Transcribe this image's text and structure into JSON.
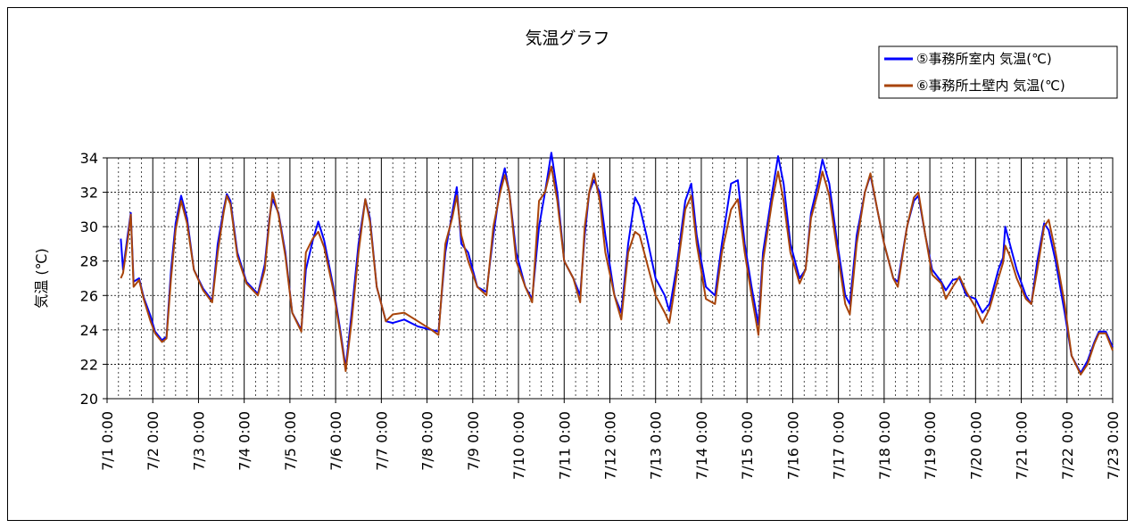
{
  "chart_data": {
    "type": "line",
    "title": "気温グラフ",
    "ylabel": "気温 (℃)",
    "xlabel": "",
    "ylim": [
      20,
      34
    ],
    "yticks": [
      20,
      22,
      24,
      26,
      28,
      30,
      32,
      34
    ],
    "xlim": [
      0,
      22
    ],
    "xtick_labels": [
      "7/1 0:00",
      "7/2 0:00",
      "7/3 0:00",
      "7/4 0:00",
      "7/5 0:00",
      "7/6 0:00",
      "7/7 0:00",
      "7/8 0:00",
      "7/9 0:00",
      "7/10 0:00",
      "7/11 0:00",
      "7/12 0:00",
      "7/13 0:00",
      "7/14 0:00",
      "7/15 0:00",
      "7/16 0:00",
      "7/17 0:00",
      "7/18 0:00",
      "7/19 0:00",
      "7/20 0:00",
      "7/21 0:00",
      "7/22 0:00",
      "7/23 0:00"
    ],
    "grid": true,
    "legend_position": "top-right",
    "series": [
      {
        "name": "⑤事務所室内 気温(℃)",
        "color": "#0000ff",
        "points": [
          [
            0.3,
            29.3
          ],
          [
            0.35,
            27.5
          ],
          [
            0.45,
            29.5
          ],
          [
            0.52,
            30.8
          ],
          [
            0.58,
            26.8
          ],
          [
            0.7,
            27.0
          ],
          [
            0.8,
            25.9
          ],
          [
            0.95,
            24.8
          ],
          [
            1.05,
            23.9
          ],
          [
            1.2,
            23.4
          ],
          [
            1.3,
            23.6
          ],
          [
            1.4,
            27.5
          ],
          [
            1.5,
            30.2
          ],
          [
            1.62,
            31.8
          ],
          [
            1.75,
            30.5
          ],
          [
            1.9,
            27.5
          ],
          [
            2.1,
            26.4
          ],
          [
            2.3,
            25.7
          ],
          [
            2.42,
            29.0
          ],
          [
            2.55,
            31.0
          ],
          [
            2.62,
            31.9
          ],
          [
            2.7,
            31.5
          ],
          [
            2.85,
            28.5
          ],
          [
            3.05,
            26.8
          ],
          [
            3.3,
            26.1
          ],
          [
            3.45,
            27.8
          ],
          [
            3.55,
            30.5
          ],
          [
            3.62,
            31.6
          ],
          [
            3.75,
            30.8
          ],
          [
            3.9,
            28.5
          ],
          [
            4.05,
            25.0
          ],
          [
            4.25,
            24.0
          ],
          [
            4.35,
            27.5
          ],
          [
            4.5,
            29.2
          ],
          [
            4.62,
            30.3
          ],
          [
            4.75,
            29.2
          ],
          [
            4.95,
            26.5
          ],
          [
            5.1,
            24.0
          ],
          [
            5.22,
            21.8
          ],
          [
            5.35,
            25.0
          ],
          [
            5.5,
            29.0
          ],
          [
            5.65,
            31.6
          ],
          [
            5.75,
            30.5
          ],
          [
            5.9,
            26.5
          ],
          [
            6.1,
            24.5
          ],
          [
            6.25,
            24.4
          ],
          [
            6.5,
            24.6
          ],
          [
            6.8,
            24.2
          ],
          [
            7.1,
            24.0
          ],
          [
            7.25,
            23.9
          ],
          [
            7.4,
            28.5
          ],
          [
            7.55,
            30.8
          ],
          [
            7.65,
            32.3
          ],
          [
            7.75,
            29.0
          ],
          [
            7.9,
            28.5
          ],
          [
            8.1,
            26.5
          ],
          [
            8.3,
            26.2
          ],
          [
            8.45,
            29.5
          ],
          [
            8.6,
            32.3
          ],
          [
            8.7,
            33.4
          ],
          [
            8.8,
            32.0
          ],
          [
            8.95,
            28.5
          ],
          [
            9.15,
            26.5
          ],
          [
            9.3,
            25.8
          ],
          [
            9.45,
            30.0
          ],
          [
            9.58,
            32.0
          ],
          [
            9.72,
            34.3
          ],
          [
            9.85,
            32.0
          ],
          [
            10.0,
            28.0
          ],
          [
            10.2,
            27.0
          ],
          [
            10.35,
            26.0
          ],
          [
            10.45,
            29.5
          ],
          [
            10.55,
            32.0
          ],
          [
            10.65,
            32.7
          ],
          [
            10.78,
            32.0
          ],
          [
            10.9,
            29.5
          ],
          [
            11.1,
            26.0
          ],
          [
            11.25,
            25.0
          ],
          [
            11.4,
            29.0
          ],
          [
            11.55,
            31.7
          ],
          [
            11.65,
            31.2
          ],
          [
            11.8,
            29.5
          ],
          [
            12.0,
            27.0
          ],
          [
            12.2,
            26.0
          ],
          [
            12.3,
            25.1
          ],
          [
            12.45,
            27.5
          ],
          [
            12.65,
            31.5
          ],
          [
            12.78,
            32.5
          ],
          [
            12.9,
            29.5
          ],
          [
            13.1,
            26.5
          ],
          [
            13.3,
            26.0
          ],
          [
            13.45,
            29.0
          ],
          [
            13.65,
            32.5
          ],
          [
            13.8,
            32.7
          ],
          [
            13.95,
            29.0
          ],
          [
            14.1,
            26.5
          ],
          [
            14.25,
            24.3
          ],
          [
            14.35,
            28.5
          ],
          [
            14.55,
            32.0
          ],
          [
            14.68,
            34.1
          ],
          [
            14.8,
            32.5
          ],
          [
            14.95,
            29.0
          ],
          [
            15.15,
            27.0
          ],
          [
            15.28,
            27.5
          ],
          [
            15.4,
            30.8
          ],
          [
            15.55,
            32.5
          ],
          [
            15.65,
            33.9
          ],
          [
            15.8,
            32.5
          ],
          [
            15.95,
            29.5
          ],
          [
            16.15,
            26.0
          ],
          [
            16.25,
            25.5
          ],
          [
            16.4,
            29.5
          ],
          [
            16.58,
            32.0
          ],
          [
            16.7,
            33.0
          ],
          [
            16.85,
            31.0
          ],
          [
            17.0,
            29.0
          ],
          [
            17.2,
            27.0
          ],
          [
            17.3,
            26.8
          ],
          [
            17.5,
            30.0
          ],
          [
            17.65,
            31.5
          ],
          [
            17.75,
            31.8
          ],
          [
            17.9,
            29.5
          ],
          [
            18.05,
            27.5
          ],
          [
            18.25,
            26.8
          ],
          [
            18.35,
            26.3
          ],
          [
            18.5,
            26.9
          ],
          [
            18.65,
            27.0
          ],
          [
            18.8,
            26.0
          ],
          [
            19.0,
            25.8
          ],
          [
            19.15,
            25.0
          ],
          [
            19.3,
            25.5
          ],
          [
            19.5,
            27.5
          ],
          [
            19.6,
            28.2
          ],
          [
            19.65,
            30.0
          ],
          [
            19.75,
            29.0
          ],
          [
            19.9,
            27.5
          ],
          [
            20.1,
            26.0
          ],
          [
            20.22,
            25.5
          ],
          [
            20.35,
            28.0
          ],
          [
            20.5,
            30.2
          ],
          [
            20.6,
            29.8
          ],
          [
            20.75,
            28.0
          ],
          [
            20.95,
            25.0
          ],
          [
            21.1,
            22.5
          ],
          [
            21.3,
            21.5
          ],
          [
            21.45,
            22.2
          ],
          [
            21.6,
            23.3
          ],
          [
            21.7,
            23.9
          ],
          [
            21.85,
            23.9
          ],
          [
            22.0,
            23.0
          ]
        ]
      },
      {
        "name": "⑥事務所土壁内 気温(℃)",
        "color": "#a8440a",
        "points": [
          [
            0.3,
            27.0
          ],
          [
            0.35,
            27.3
          ],
          [
            0.45,
            29.2
          ],
          [
            0.52,
            30.7
          ],
          [
            0.58,
            26.5
          ],
          [
            0.7,
            26.9
          ],
          [
            0.8,
            25.8
          ],
          [
            0.95,
            24.5
          ],
          [
            1.05,
            23.8
          ],
          [
            1.2,
            23.3
          ],
          [
            1.3,
            23.5
          ],
          [
            1.4,
            27.0
          ],
          [
            1.5,
            29.8
          ],
          [
            1.62,
            31.5
          ],
          [
            1.75,
            30.2
          ],
          [
            1.9,
            27.5
          ],
          [
            2.1,
            26.3
          ],
          [
            2.3,
            25.6
          ],
          [
            2.42,
            28.5
          ],
          [
            2.55,
            30.8
          ],
          [
            2.62,
            31.8
          ],
          [
            2.7,
            31.3
          ],
          [
            2.85,
            28.3
          ],
          [
            3.05,
            26.7
          ],
          [
            3.3,
            26.0
          ],
          [
            3.45,
            27.5
          ],
          [
            3.55,
            30.3
          ],
          [
            3.62,
            32.0
          ],
          [
            3.75,
            30.7
          ],
          [
            3.9,
            28.3
          ],
          [
            4.05,
            25.0
          ],
          [
            4.25,
            23.9
          ],
          [
            4.35,
            28.5
          ],
          [
            4.5,
            29.3
          ],
          [
            4.62,
            29.7
          ],
          [
            4.75,
            28.8
          ],
          [
            4.95,
            26.3
          ],
          [
            5.1,
            23.8
          ],
          [
            5.22,
            21.6
          ],
          [
            5.35,
            24.5
          ],
          [
            5.5,
            28.5
          ],
          [
            5.65,
            31.6
          ],
          [
            5.75,
            30.3
          ],
          [
            5.9,
            26.5
          ],
          [
            6.1,
            24.5
          ],
          [
            6.25,
            24.9
          ],
          [
            6.5,
            25.0
          ],
          [
            6.8,
            24.5
          ],
          [
            7.1,
            24.0
          ],
          [
            7.25,
            23.7
          ],
          [
            7.4,
            29.0
          ],
          [
            7.55,
            30.5
          ],
          [
            7.65,
            31.8
          ],
          [
            7.75,
            29.5
          ],
          [
            7.9,
            28.0
          ],
          [
            8.1,
            26.5
          ],
          [
            8.3,
            26.0
          ],
          [
            8.45,
            30.0
          ],
          [
            8.6,
            32.0
          ],
          [
            8.7,
            33.0
          ],
          [
            8.8,
            32.0
          ],
          [
            8.95,
            28.0
          ],
          [
            9.15,
            26.5
          ],
          [
            9.3,
            25.6
          ],
          [
            9.45,
            31.5
          ],
          [
            9.58,
            32.0
          ],
          [
            9.72,
            33.5
          ],
          [
            9.85,
            31.5
          ],
          [
            10.0,
            28.0
          ],
          [
            10.2,
            27.0
          ],
          [
            10.35,
            25.6
          ],
          [
            10.45,
            30.0
          ],
          [
            10.55,
            32.0
          ],
          [
            10.65,
            33.1
          ],
          [
            10.78,
            31.5
          ],
          [
            10.9,
            28.5
          ],
          [
            11.1,
            26.0
          ],
          [
            11.25,
            24.6
          ],
          [
            11.4,
            28.5
          ],
          [
            11.55,
            29.7
          ],
          [
            11.65,
            29.5
          ],
          [
            11.8,
            28.0
          ],
          [
            12.0,
            26.0
          ],
          [
            12.2,
            25.0
          ],
          [
            12.3,
            24.4
          ],
          [
            12.45,
            27.0
          ],
          [
            12.65,
            31.0
          ],
          [
            12.78,
            31.8
          ],
          [
            12.9,
            29.0
          ],
          [
            13.1,
            25.8
          ],
          [
            13.3,
            25.5
          ],
          [
            13.45,
            28.5
          ],
          [
            13.65,
            31.0
          ],
          [
            13.8,
            31.6
          ],
          [
            13.95,
            28.5
          ],
          [
            14.1,
            26.0
          ],
          [
            14.25,
            23.7
          ],
          [
            14.35,
            28.0
          ],
          [
            14.55,
            31.5
          ],
          [
            14.68,
            33.2
          ],
          [
            14.8,
            31.5
          ],
          [
            14.95,
            28.5
          ],
          [
            15.15,
            26.7
          ],
          [
            15.28,
            27.5
          ],
          [
            15.4,
            30.5
          ],
          [
            15.55,
            32.0
          ],
          [
            15.65,
            33.2
          ],
          [
            15.8,
            31.8
          ],
          [
            15.95,
            29.0
          ],
          [
            16.15,
            25.5
          ],
          [
            16.25,
            24.9
          ],
          [
            16.4,
            29.0
          ],
          [
            16.58,
            32.0
          ],
          [
            16.7,
            33.1
          ],
          [
            16.85,
            31.0
          ],
          [
            17.0,
            29.0
          ],
          [
            17.2,
            27.0
          ],
          [
            17.3,
            26.5
          ],
          [
            17.5,
            30.0
          ],
          [
            17.65,
            31.7
          ],
          [
            17.75,
            32.0
          ],
          [
            17.9,
            29.5
          ],
          [
            18.05,
            27.2
          ],
          [
            18.25,
            26.7
          ],
          [
            18.35,
            25.8
          ],
          [
            18.5,
            26.5
          ],
          [
            18.65,
            27.1
          ],
          [
            18.8,
            26.2
          ],
          [
            19.0,
            25.3
          ],
          [
            19.15,
            24.4
          ],
          [
            19.3,
            25.2
          ],
          [
            19.5,
            27.0
          ],
          [
            19.6,
            27.9
          ],
          [
            19.65,
            28.9
          ],
          [
            19.75,
            28.3
          ],
          [
            19.9,
            27.0
          ],
          [
            20.1,
            25.8
          ],
          [
            20.22,
            25.5
          ],
          [
            20.35,
            27.5
          ],
          [
            20.5,
            30.0
          ],
          [
            20.6,
            30.4
          ],
          [
            20.75,
            28.5
          ],
          [
            20.95,
            25.5
          ],
          [
            21.1,
            22.5
          ],
          [
            21.3,
            21.4
          ],
          [
            21.45,
            22.0
          ],
          [
            21.6,
            23.2
          ],
          [
            21.7,
            23.8
          ],
          [
            21.85,
            23.8
          ],
          [
            22.0,
            22.8
          ]
        ]
      }
    ]
  }
}
